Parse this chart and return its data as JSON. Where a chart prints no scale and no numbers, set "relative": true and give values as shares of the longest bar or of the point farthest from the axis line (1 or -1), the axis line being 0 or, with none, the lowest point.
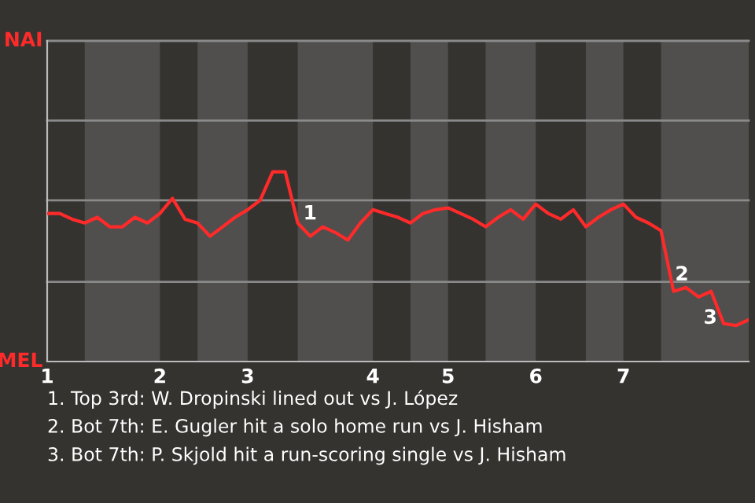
{
  "chart_data": {
    "type": "line",
    "relative": true,
    "categories": [
      "1",
      null,
      null,
      null,
      null,
      null,
      null,
      null,
      null,
      "2",
      null,
      null,
      null,
      null,
      null,
      null,
      "3",
      null,
      null,
      null,
      null,
      null,
      null,
      null,
      null,
      null,
      "4",
      null,
      null,
      null,
      null,
      null,
      "5",
      null,
      null,
      null,
      null,
      null,
      null,
      "6",
      null,
      null,
      null,
      null,
      null,
      null,
      "7",
      null,
      null,
      null,
      null,
      null,
      null,
      null,
      null,
      null,
      null
    ],
    "series": [
      {
        "color": "#ff2a2a",
        "values": [
          0.78,
          0.78,
          0.75,
          0.73,
          0.76,
          0.71,
          0.71,
          0.76,
          0.73,
          0.78,
          0.86,
          0.75,
          0.73,
          0.66,
          0.71,
          0.76,
          0.8,
          0.85,
          1,
          1,
          0.73,
          0.66,
          0.71,
          0.68,
          0.64,
          0.73,
          0.8,
          0.78,
          0.76,
          0.73,
          0.78,
          0.8,
          0.81,
          0.78,
          0.75,
          0.71,
          0.76,
          0.8,
          0.75,
          0.83,
          0.78,
          0.75,
          0.8,
          0.71,
          0.76,
          0.8,
          0.83,
          0.76,
          0.73,
          0.69,
          0.37,
          0.39,
          0.34,
          0.37,
          0.2,
          0.19,
          0.22
        ]
      }
    ],
    "ref_lines": [
      {
        "axis": "y",
        "value": 0.42,
        "color": "#8a8a8a"
      },
      {
        "axis": "y",
        "value": 0.85,
        "color": "#8a8a8a"
      },
      {
        "axis": "y",
        "value": 1.27,
        "color": "#8a8a8a"
      },
      {
        "axis": "y",
        "value": 1.69,
        "color": "#8a8a8a"
      }
    ],
    "annotations": [
      "NAI",
      "MEL",
      "1",
      "2",
      "3",
      "1. Top 3rd: W. Dropinski lined out vs J. López",
      "2. Bot 7th: E. Gugler hit a solo home run vs J. Hisham",
      "3. Bot 7th: P. Skjold hit a run-scoring single vs J. Hisham"
    ]
  }
}
